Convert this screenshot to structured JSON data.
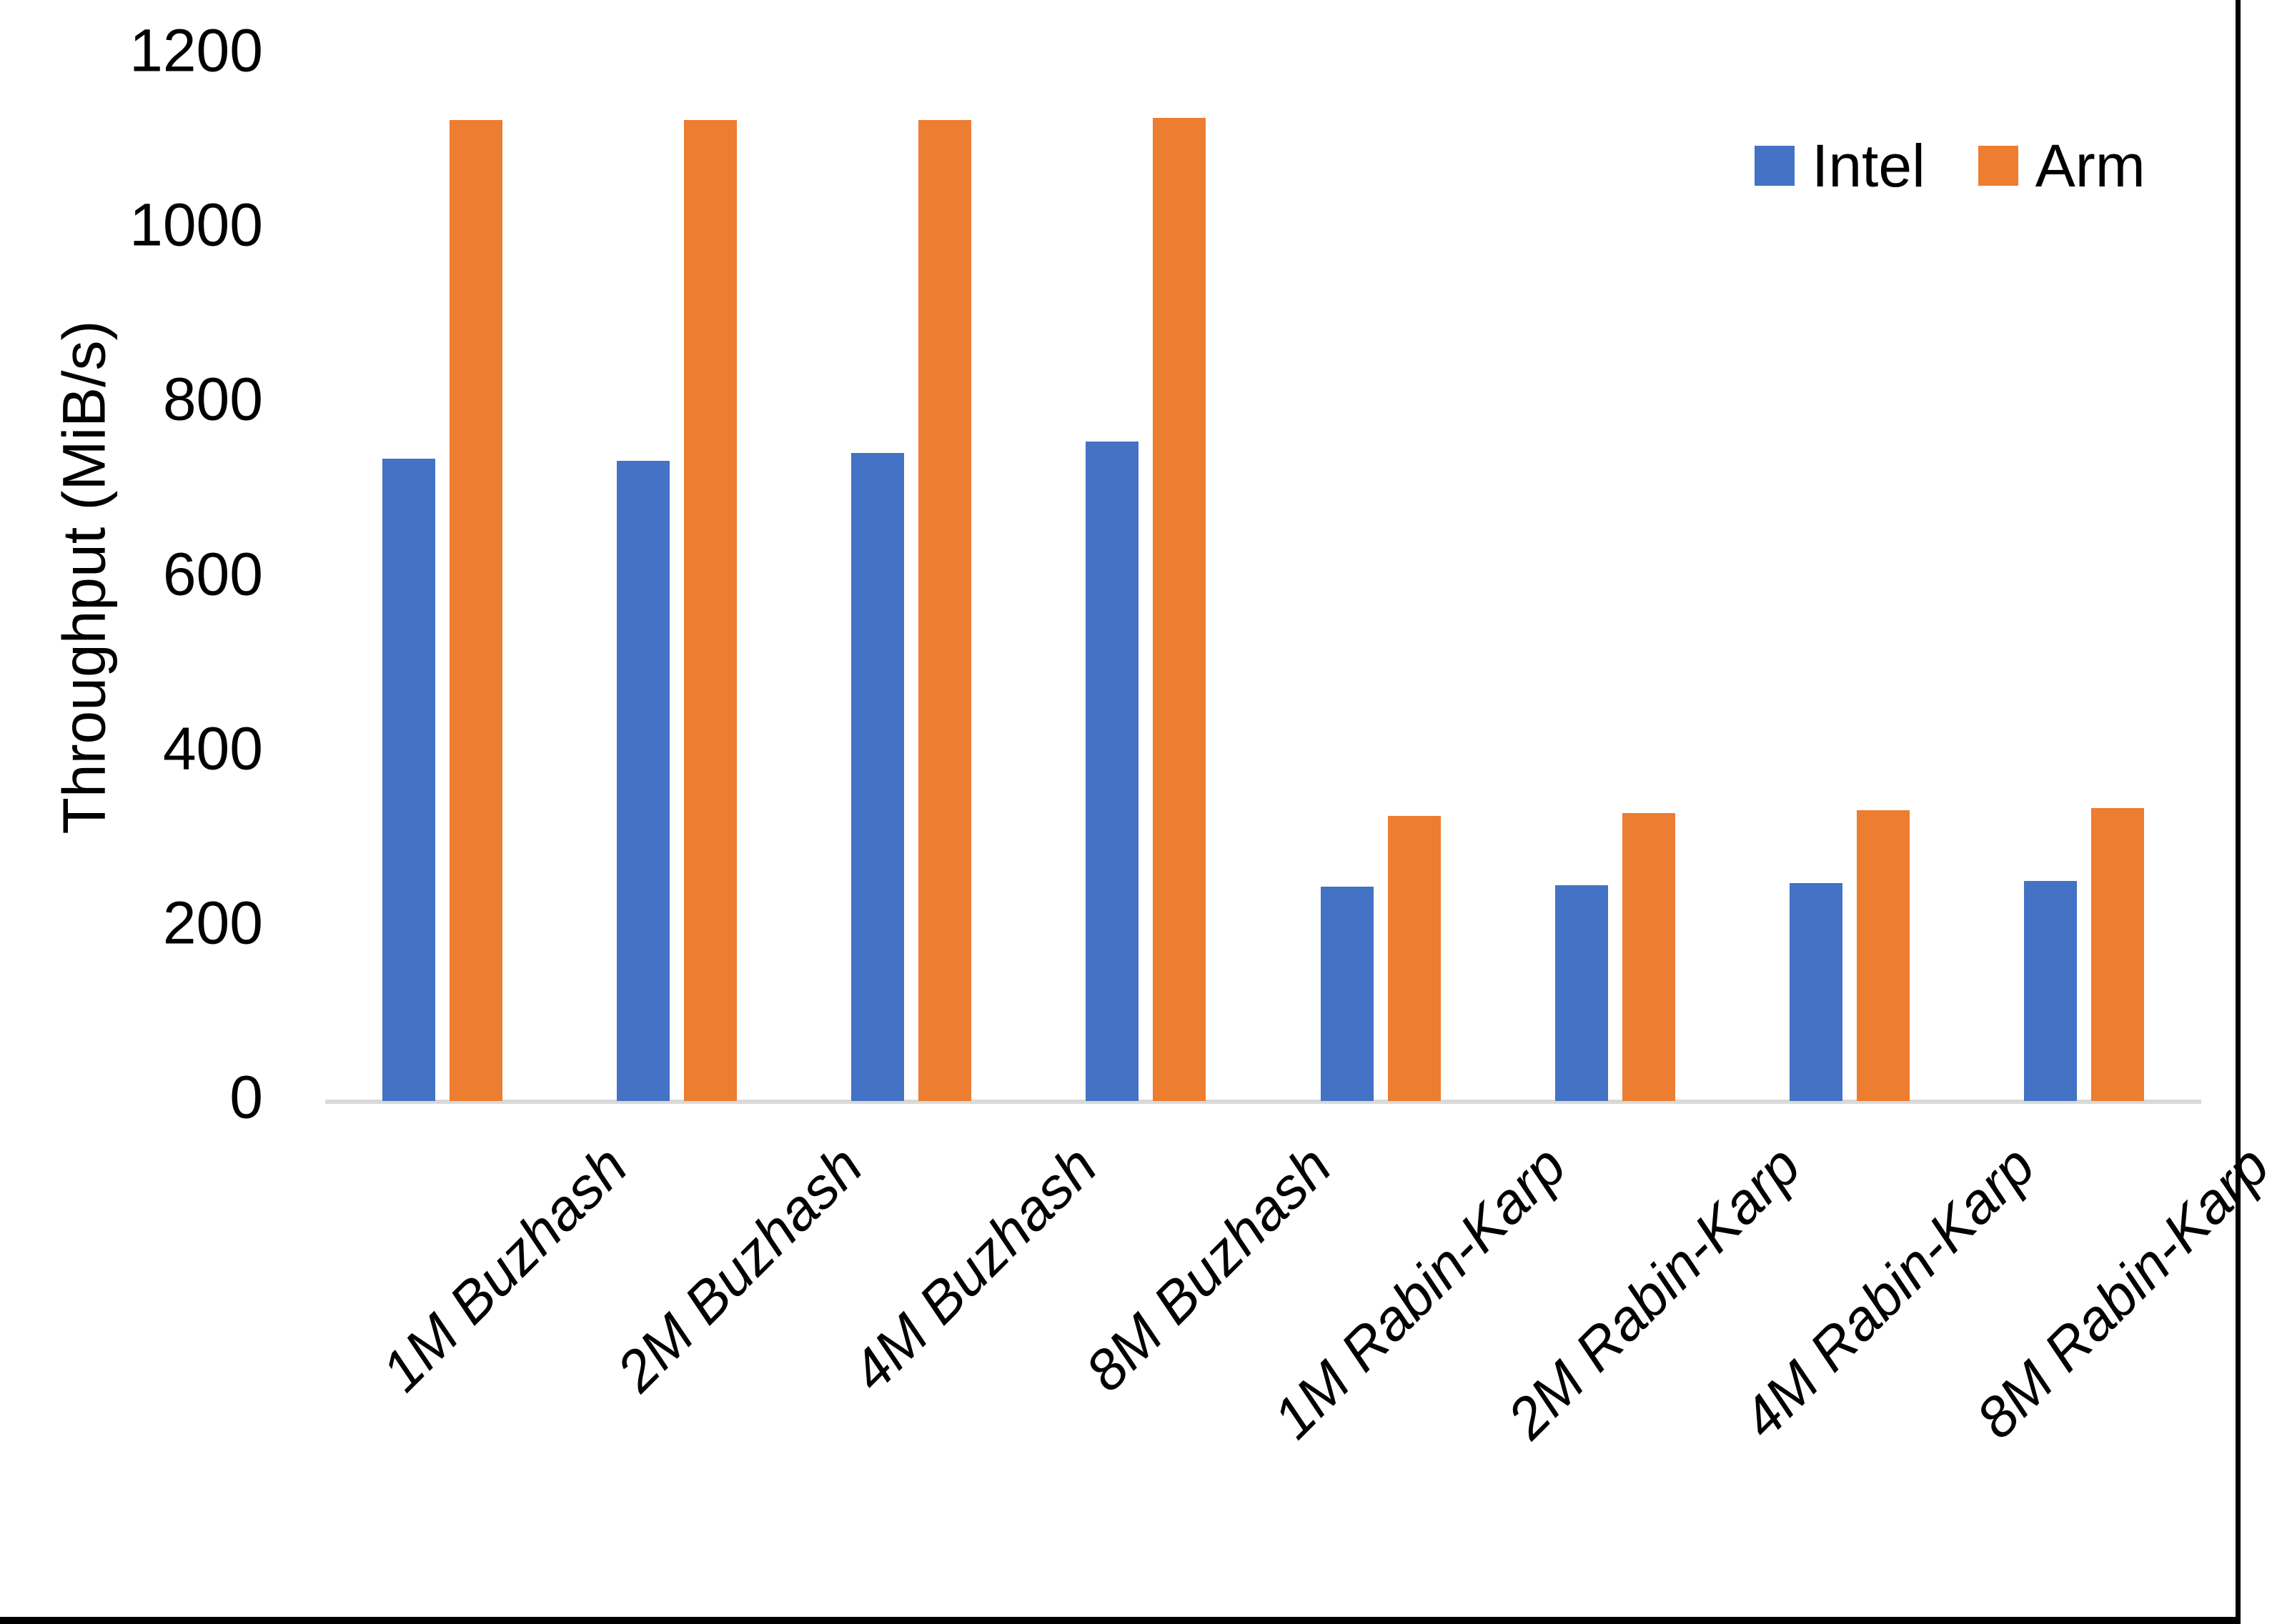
{
  "chart_data": {
    "type": "bar",
    "title": "",
    "xlabel": "",
    "ylabel": "Throughput (MiB/s)",
    "ylim": [
      0,
      1200
    ],
    "yticks": [
      1200,
      1000,
      800,
      600,
      400,
      200,
      0
    ],
    "grid": false,
    "legend_position": "top-right",
    "categories": [
      "1M Buzhash",
      "2M Buzhash",
      "4M Buzhash",
      "8M Buzhash",
      "1M Rabin-Karp",
      "2M Rabin-Karp",
      "4M Rabin-Karp",
      "8M Rabin-Karp"
    ],
    "series": [
      {
        "name": "Intel",
        "color": "#4472C4",
        "values": [
          736,
          734,
          743,
          756,
          246,
          247,
          250,
          252
        ]
      },
      {
        "name": "Arm",
        "color": "#ED7D31",
        "values": [
          1125,
          1125,
          1125,
          1127,
          327,
          330,
          333,
          336
        ]
      }
    ]
  },
  "colors": {
    "axis_line": "#D9D9D9",
    "text": "#000000",
    "frame_border": "#000000",
    "background": "#FFFFFF"
  }
}
